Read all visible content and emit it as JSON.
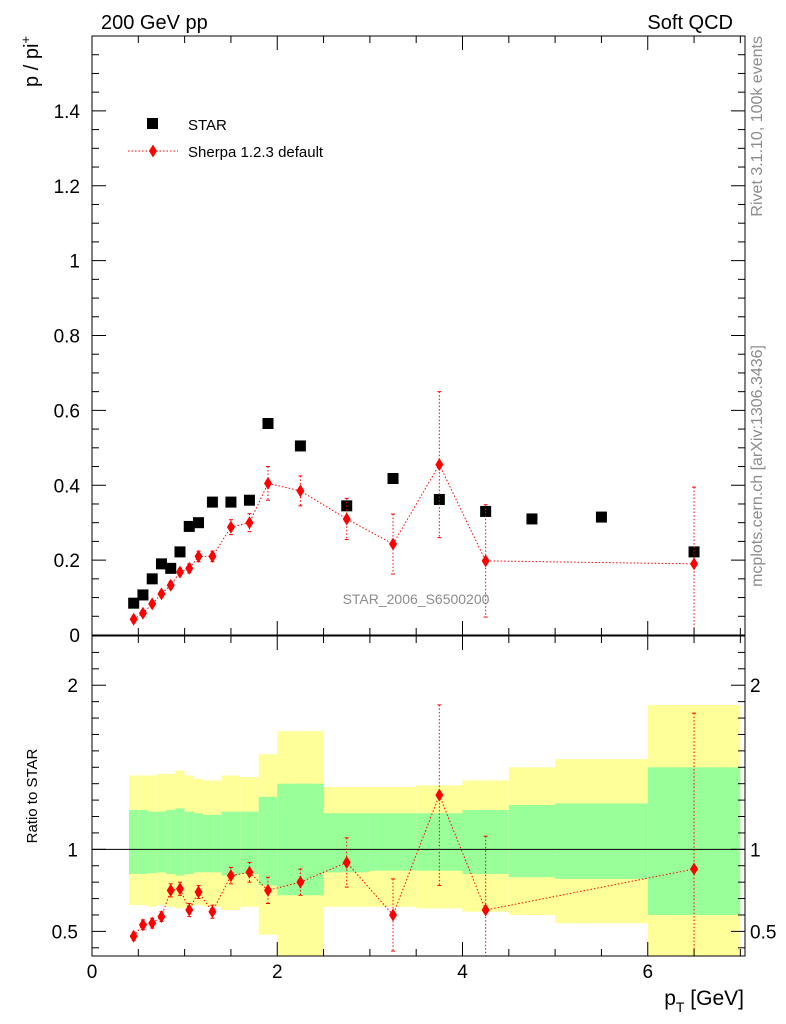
{
  "header": {
    "left": "200 GeV pp",
    "right": "Soft QCD"
  },
  "side_labels": {
    "rivet": "Rivet 3.1.10,  100k events",
    "mcplots": "mcplots.cern.ch [arXiv:1306.3436]"
  },
  "chart_data": [
    {
      "type": "scatter",
      "panel": "main",
      "ylabel": "p / pi",
      "ylabel_sup": "+",
      "xlim": [
        0,
        7.05
      ],
      "ylim": [
        0,
        1.6
      ],
      "yticks": [
        0,
        0.2,
        0.4,
        0.6,
        0.8,
        1,
        1.2,
        1.4
      ],
      "ytick_labels": [
        "0",
        "0.2",
        "0.4",
        "0.6",
        "0.8",
        "1",
        "1.2",
        "1.4"
      ],
      "watermark": "STAR_2006_S6500200",
      "legend_position": "top-left",
      "series": [
        {
          "name": "STAR",
          "color": "#000000",
          "marker": "square",
          "x": [
            0.45,
            0.55,
            0.65,
            0.75,
            0.85,
            0.95,
            1.05,
            1.15,
            1.3,
            1.5,
            1.7,
            1.9,
            2.25,
            2.75,
            3.25,
            3.75,
            4.25,
            4.75,
            5.5,
            6.5
          ],
          "y": [
            0.085,
            0.107,
            0.15,
            0.19,
            0.178,
            0.222,
            0.29,
            0.3,
            0.355,
            0.355,
            0.36,
            0.565,
            0.505,
            0.345,
            0.418,
            0.362,
            0.33,
            0.31,
            0.315,
            0.222
          ]
        },
        {
          "name": "Sherpa 1.2.3 default",
          "color": "#ff0000",
          "marker": "diamond",
          "line": "dotted",
          "x": [
            0.45,
            0.55,
            0.65,
            0.75,
            0.85,
            0.95,
            1.05,
            1.15,
            1.3,
            1.5,
            1.7,
            1.9,
            2.25,
            2.75,
            3.25,
            3.75,
            4.25,
            6.5
          ],
          "y": [
            0.042,
            0.058,
            0.083,
            0.11,
            0.133,
            0.168,
            0.178,
            0.21,
            0.21,
            0.288,
            0.3,
            0.405,
            0.385,
            0.31,
            0.243,
            0.455,
            0.198,
            0.19
          ],
          "yerr": [
            0.005,
            0.006,
            0.007,
            0.008,
            0.01,
            0.01,
            0.012,
            0.014,
            0.014,
            0.02,
            0.024,
            0.045,
            0.04,
            0.055,
            0.08,
            0.195,
            0.15,
            0.205
          ]
        }
      ]
    },
    {
      "type": "scatter",
      "panel": "ratio",
      "ylabel": "Ratio to STAR",
      "xlabel": "p",
      "xlabel_sub": "T",
      "xlabel_unit": "[GeV]",
      "xlim": [
        0,
        7.05
      ],
      "ylim": [
        0.35,
        2.3
      ],
      "xticks": [
        0,
        2,
        4,
        6
      ],
      "xtick_labels": [
        "0",
        "2",
        "4",
        "6"
      ],
      "yticks": [
        0.5,
        1,
        2
      ],
      "ytick_labels": [
        "0.5",
        "1",
        "2"
      ],
      "bands": [
        {
          "x0": 0.4,
          "x1": 0.5,
          "y_lo": 0.66,
          "y_hi": 1.45,
          "y_lo_inner": 0.85,
          "y_hi_inner": 1.24
        },
        {
          "x0": 0.5,
          "x1": 0.6,
          "y_lo": 0.66,
          "y_hi": 1.45,
          "y_lo_inner": 0.85,
          "y_hi_inner": 1.24
        },
        {
          "x0": 0.6,
          "x1": 0.7,
          "y_lo": 0.65,
          "y_hi": 1.45,
          "y_lo_inner": 0.855,
          "y_hi_inner": 1.23
        },
        {
          "x0": 0.7,
          "x1": 0.8,
          "y_lo": 0.66,
          "y_hi": 1.46,
          "y_lo_inner": 0.86,
          "y_hi_inner": 1.23
        },
        {
          "x0": 0.8,
          "x1": 0.9,
          "y_lo": 0.65,
          "y_hi": 1.46,
          "y_lo_inner": 0.85,
          "y_hi_inner": 1.24
        },
        {
          "x0": 0.9,
          "x1": 1.0,
          "y_lo": 0.64,
          "y_hi": 1.48,
          "y_lo_inner": 0.84,
          "y_hi_inner": 1.25
        },
        {
          "x0": 1.0,
          "x1": 1.1,
          "y_lo": 0.65,
          "y_hi": 1.45,
          "y_lo_inner": 0.85,
          "y_hi_inner": 1.23
        },
        {
          "x0": 1.1,
          "x1": 1.2,
          "y_lo": 0.66,
          "y_hi": 1.43,
          "y_lo_inner": 0.86,
          "y_hi_inner": 1.22
        },
        {
          "x0": 1.2,
          "x1": 1.4,
          "y_lo": 0.65,
          "y_hi": 1.42,
          "y_lo_inner": 0.86,
          "y_hi_inner": 1.21
        },
        {
          "x0": 1.4,
          "x1": 1.6,
          "y_lo": 0.63,
          "y_hi": 1.45,
          "y_lo_inner": 0.84,
          "y_hi_inner": 1.23
        },
        {
          "x0": 1.6,
          "x1": 1.8,
          "y_lo": 0.65,
          "y_hi": 1.44,
          "y_lo_inner": 0.85,
          "y_hi_inner": 1.23
        },
        {
          "x0": 1.8,
          "x1": 2.0,
          "y_lo": 0.48,
          "y_hi": 1.58,
          "y_lo_inner": 0.78,
          "y_hi_inner": 1.32
        },
        {
          "x0": 2.0,
          "x1": 2.5,
          "y_lo": 0.33,
          "y_hi": 1.72,
          "y_lo_inner": 0.72,
          "y_hi_inner": 1.4
        },
        {
          "x0": 2.5,
          "x1": 3.0,
          "y_lo": 0.65,
          "y_hi": 1.38,
          "y_lo_inner": 0.86,
          "y_hi_inner": 1.22
        },
        {
          "x0": 3.0,
          "x1": 3.5,
          "y_lo": 0.65,
          "y_hi": 1.38,
          "y_lo_inner": 0.87,
          "y_hi_inner": 1.22
        },
        {
          "x0": 3.5,
          "x1": 4.0,
          "y_lo": 0.64,
          "y_hi": 1.39,
          "y_lo_inner": 0.87,
          "y_hi_inner": 1.22
        },
        {
          "x0": 4.0,
          "x1": 4.5,
          "y_lo": 0.62,
          "y_hi": 1.42,
          "y_lo_inner": 0.85,
          "y_hi_inner": 1.24
        },
        {
          "x0": 4.5,
          "x1": 5.0,
          "y_lo": 0.6,
          "y_hi": 1.5,
          "y_lo_inner": 0.83,
          "y_hi_inner": 1.27
        },
        {
          "x0": 5.0,
          "x1": 6.0,
          "y_lo": 0.55,
          "y_hi": 1.55,
          "y_lo_inner": 0.82,
          "y_hi_inner": 1.28
        },
        {
          "x0": 6.0,
          "x1": 7.0,
          "y_lo": 0.35,
          "y_hi": 1.88,
          "y_lo_inner": 0.6,
          "y_hi_inner": 1.5
        }
      ],
      "series": [
        {
          "name": "Sherpa 1.2.3 default",
          "color": "#ff0000",
          "marker": "diamond",
          "line": "dotted",
          "x": [
            0.45,
            0.55,
            0.65,
            0.75,
            0.85,
            0.95,
            1.05,
            1.15,
            1.3,
            1.5,
            1.7,
            1.9,
            2.25,
            2.75,
            3.25,
            3.75,
            4.25,
            6.5
          ],
          "y": [
            0.47,
            0.54,
            0.55,
            0.59,
            0.75,
            0.76,
            0.63,
            0.74,
            0.62,
            0.84,
            0.86,
            0.75,
            0.8,
            0.92,
            0.6,
            1.33,
            0.63,
            0.88
          ],
          "yerr": [
            0.025,
            0.03,
            0.03,
            0.03,
            0.04,
            0.04,
            0.04,
            0.04,
            0.04,
            0.05,
            0.06,
            0.08,
            0.08,
            0.15,
            0.22,
            0.55,
            0.45,
            0.95
          ]
        }
      ]
    }
  ]
}
